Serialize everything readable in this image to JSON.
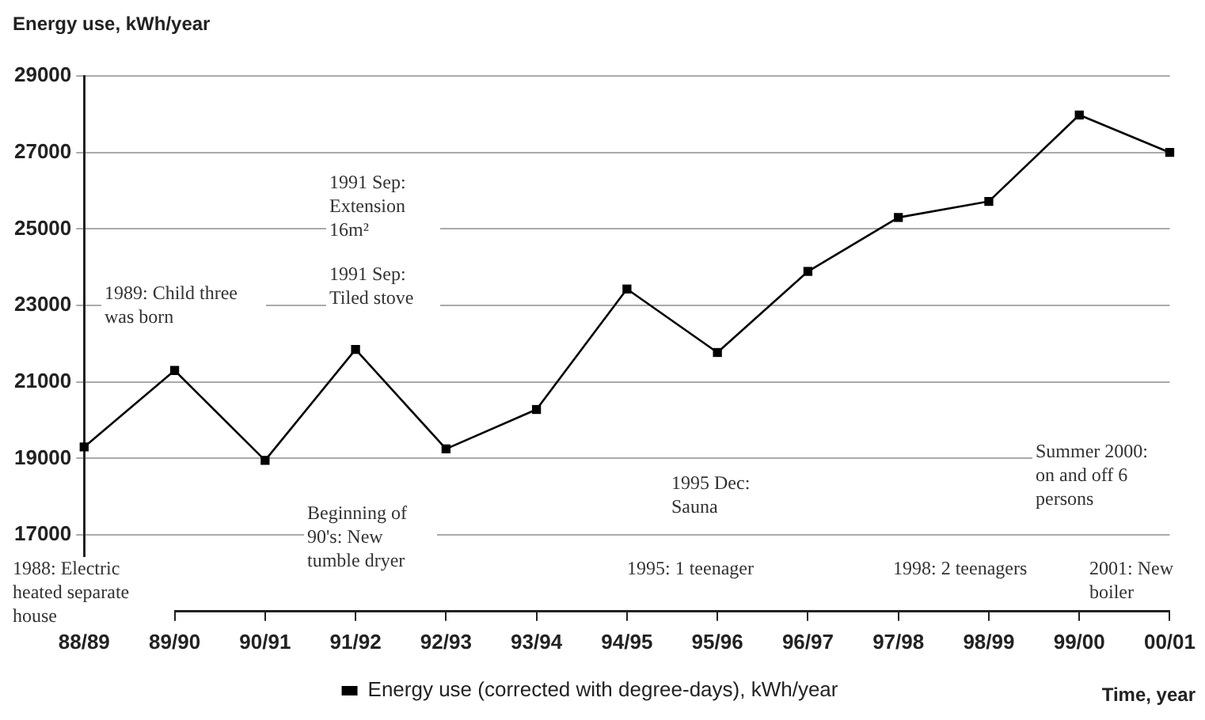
{
  "chart_data": {
    "type": "line",
    "ylabel": "Energy use, kWh/year",
    "xlabel": "Time, year",
    "categories": [
      "88/89",
      "89/90",
      "90/91",
      "91/92",
      "92/93",
      "93/94",
      "94/95",
      "95/96",
      "96/97",
      "97/98",
      "98/99",
      "99/00",
      "00/01"
    ],
    "series": [
      {
        "name": "Energy use (corrected with degree-days), kWh/year",
        "color": "#000000",
        "values": [
          19300,
          21300,
          18950,
          21850,
          19250,
          20280,
          23430,
          21770,
          23890,
          25300,
          25720,
          27980,
          27000
        ]
      }
    ],
    "ylim": [
      15000,
      29000
    ],
    "yticks": [
      17000,
      19000,
      21000,
      23000,
      25000,
      27000,
      29000
    ],
    "grid": "y",
    "legend": "bottom",
    "marker": "square",
    "line_style": "solid",
    "annotations": [
      "1988: Electric heated separate house",
      "1989: Child three was born",
      "1991 Sep: Extension 16m²",
      "1991 Sep: Tiled stove",
      "Beginning of 90's: New tumble dryer",
      "1995 Dec: Sauna",
      "1995: 1 teenager",
      "1998: 2 teenagers",
      "Summer 2000: on and off 6 persons",
      "2001: New boiler"
    ]
  }
}
